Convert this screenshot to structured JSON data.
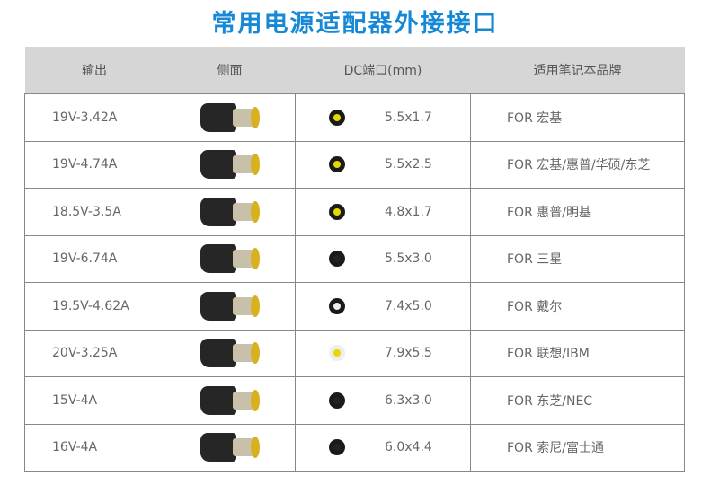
{
  "title": "常用电源适配器外接接口",
  "headers": [
    "输出",
    "侧面",
    "DC端口(mm)",
    "适用笔记本品牌"
  ],
  "rows": [
    {
      "output": "19V-3.42A",
      "dc": "5.5x1.7",
      "brand": "FOR 宏基",
      "port_color": "#e6d800"
    },
    {
      "output": "19V-4.74A",
      "dc": "5.5x2.5",
      "brand": "FOR 宏基/惠普/华硕/东芝",
      "port_color": "#e6d800"
    },
    {
      "output": "18.5V-3.5A",
      "dc": "4.8x1.7",
      "brand": "FOR 惠普/明基",
      "port_color": "#e6d800"
    },
    {
      "output": "19V-6.74A",
      "dc": "5.5x3.0",
      "brand": "FOR 三星",
      "port_color": "#333333"
    },
    {
      "output": "19.5V-4.62A",
      "dc": "7.4x5.0",
      "brand": "FOR 戴尔",
      "port_color": "#dddddd"
    },
    {
      "output": "20V-3.25A",
      "dc": "7.9x5.5",
      "brand": "FOR 联想/IBM",
      "port_color": "#e6d800"
    },
    {
      "output": "15V-4A",
      "dc": "6.3x3.0",
      "brand": "FOR 东芝/NEC",
      "port_color": "#333333"
    },
    {
      "output": "16V-4A",
      "dc": "6.0x4.4",
      "brand": "FOR 索尼/富士通",
      "port_color": "#555555"
    }
  ]
}
